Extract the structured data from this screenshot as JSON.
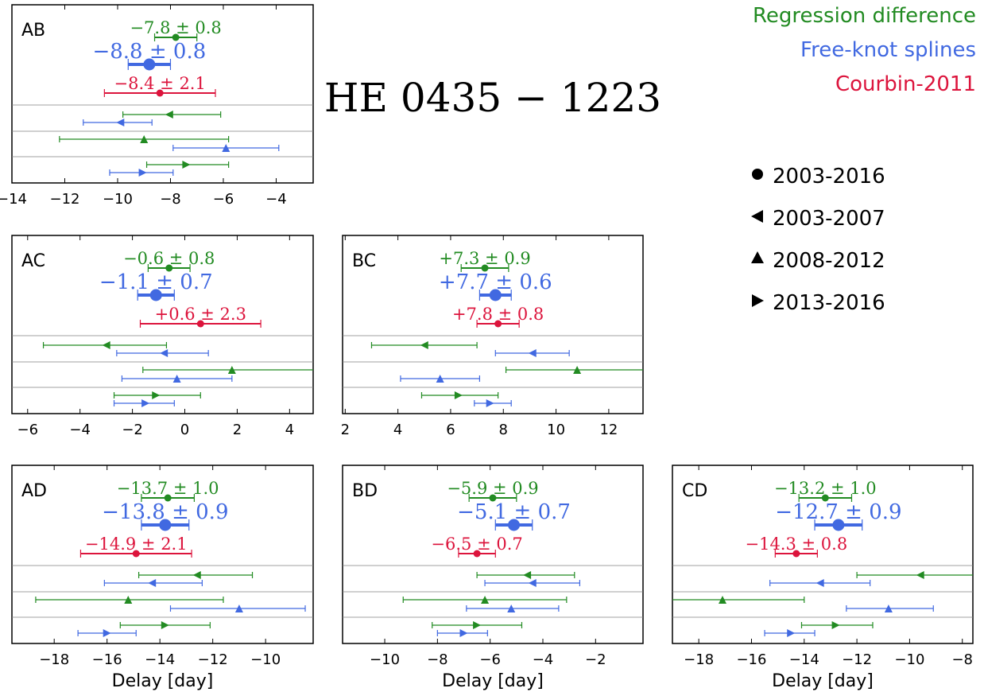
{
  "title": "HE 0435 − 1223",
  "legend_methods": [
    {
      "key": "rd",
      "label": "Regression difference",
      "color": "#228b22"
    },
    {
      "key": "fks",
      "label": "Free-knot splines",
      "color": "#4169e1"
    },
    {
      "key": "c11",
      "label": "Courbin-2011",
      "color": "#dc143c"
    }
  ],
  "legend_periods": [
    {
      "marker": "circle",
      "label": "2003-2016"
    },
    {
      "marker": "triangle-left",
      "label": "2003-2007"
    },
    {
      "marker": "triangle-up",
      "label": "2008-2012"
    },
    {
      "marker": "triangle-right",
      "label": "2013-2016"
    }
  ],
  "xlabel": "Delay [day]",
  "chart_data": [
    {
      "type": "errorbar",
      "panel": "AB",
      "xlim": [
        -14,
        -2.6
      ],
      "xticks": [
        -14,
        -12,
        -10,
        -8,
        -6,
        -4
      ],
      "xticklabels": [
        "−14",
        "−12",
        "−10",
        "−8",
        "−6",
        "−4"
      ],
      "xlabel": "",
      "summary": [
        {
          "method": "rd",
          "value": -7.8,
          "err": 0.8,
          "label": "−7.8 ± 0.8"
        },
        {
          "method": "fks",
          "value": -8.8,
          "err": 0.8,
          "label": "−8.8 ± 0.8"
        },
        {
          "method": "c11",
          "value": -8.4,
          "err": 2.1,
          "label": "−8.4 ± 2.1"
        }
      ],
      "seasons": [
        {
          "period": "2003-2007",
          "rd": [
            -8.05,
            -9.8,
            -6.1
          ],
          "fks": [
            -9.9,
            -11.3,
            -8.7
          ]
        },
        {
          "period": "2008-2012",
          "rd": [
            -9.0,
            -12.2,
            -5.8
          ],
          "fks": [
            -5.9,
            -7.9,
            -3.9
          ]
        },
        {
          "period": "2013-2016",
          "rd": [
            -7.4,
            -8.9,
            -5.8
          ],
          "fks": [
            -9.05,
            -10.3,
            -7.9
          ]
        }
      ]
    },
    {
      "type": "errorbar",
      "panel": "AC",
      "xlim": [
        -6.6,
        4.9
      ],
      "xticks": [
        -6,
        -4,
        -2,
        0,
        2,
        4
      ],
      "xticklabels": [
        "−6",
        "−4",
        "−2",
        "0",
        "2",
        "4"
      ],
      "xlabel": "",
      "summary": [
        {
          "method": "rd",
          "value": -0.6,
          "err": 0.8,
          "label": "−0.6 ± 0.8"
        },
        {
          "method": "fks",
          "value": -1.1,
          "err": 0.7,
          "label": "−1.1 ± 0.7"
        },
        {
          "method": "c11",
          "value": 0.6,
          "err": 2.3,
          "label": "+0.6 ± 2.3"
        }
      ],
      "seasons": [
        {
          "period": "2003-2007",
          "rd": [
            -3.0,
            -5.4,
            -0.7
          ],
          "fks": [
            -0.8,
            -2.6,
            0.9
          ]
        },
        {
          "period": "2008-2012",
          "rd": [
            1.8,
            -1.6,
            5.2
          ],
          "fks": [
            -0.3,
            -2.4,
            1.8
          ]
        },
        {
          "period": "2013-2016",
          "rd": [
            -1.1,
            -2.7,
            0.6
          ],
          "fks": [
            -1.5,
            -2.7,
            -0.4
          ]
        }
      ]
    },
    {
      "type": "errorbar",
      "panel": "BC",
      "xlim": [
        1.9,
        13.3
      ],
      "xticks": [
        2,
        4,
        6,
        8,
        10,
        12
      ],
      "xticklabels": [
        "2",
        "4",
        "6",
        "8",
        "10",
        "12"
      ],
      "xlabel": "",
      "summary": [
        {
          "method": "rd",
          "value": 7.3,
          "err": 0.9,
          "label": "+7.3 ± 0.9"
        },
        {
          "method": "fks",
          "value": 7.7,
          "err": 0.6,
          "label": "+7.7 ± 0.6"
        },
        {
          "method": "c11",
          "value": 7.8,
          "err": 0.8,
          "label": "+7.8 ± 0.8"
        }
      ],
      "seasons": [
        {
          "period": "2003-2007",
          "rd": [
            5.0,
            3.0,
            7.0
          ],
          "fks": [
            9.1,
            7.7,
            10.5
          ]
        },
        {
          "period": "2008-2012",
          "rd": [
            10.8,
            8.1,
            13.5
          ],
          "fks": [
            5.6,
            4.1,
            7.1
          ]
        },
        {
          "period": "2013-2016",
          "rd": [
            6.3,
            4.9,
            7.8
          ],
          "fks": [
            7.5,
            6.9,
            8.3
          ]
        }
      ]
    },
    {
      "type": "errorbar",
      "panel": "AD",
      "xlim": [
        -19.6,
        -8.2
      ],
      "xticks": [
        -18,
        -16,
        -14,
        -12,
        -10
      ],
      "xticklabels": [
        "−18",
        "−16",
        "−14",
        "−12",
        "−10"
      ],
      "xlabel": "Delay [day]",
      "summary": [
        {
          "method": "rd",
          "value": -13.7,
          "err": 1.0,
          "label": "−13.7 ± 1.0"
        },
        {
          "method": "fks",
          "value": -13.8,
          "err": 0.9,
          "label": "−13.8 ± 0.9"
        },
        {
          "method": "c11",
          "value": -14.9,
          "err": 2.1,
          "label": "−14.9 ± 2.1"
        }
      ],
      "seasons": [
        {
          "period": "2003-2007",
          "rd": [
            -12.6,
            -14.8,
            -10.5
          ],
          "fks": [
            -14.3,
            -16.1,
            -12.4
          ]
        },
        {
          "period": "2008-2012",
          "rd": [
            -15.2,
            -18.7,
            -11.6
          ],
          "fks": [
            -11.0,
            -13.6,
            -8.5
          ]
        },
        {
          "period": "2013-2016",
          "rd": [
            -13.8,
            -15.5,
            -12.1
          ],
          "fks": [
            -16.0,
            -17.1,
            -14.9
          ]
        }
      ]
    },
    {
      "type": "errorbar",
      "panel": "BD",
      "xlim": [
        -11.6,
        -0.2
      ],
      "xticks": [
        -10,
        -8,
        -6,
        -4,
        -2
      ],
      "xticklabels": [
        "−10",
        "−8",
        "−6",
        "−4",
        "−2"
      ],
      "xlabel": "Delay [day]",
      "summary": [
        {
          "method": "rd",
          "value": -5.9,
          "err": 0.9,
          "label": "−5.9 ± 0.9"
        },
        {
          "method": "fks",
          "value": -5.1,
          "err": 0.7,
          "label": "−5.1 ± 0.7"
        },
        {
          "method": "c11",
          "value": -6.5,
          "err": 0.7,
          "label": "−6.5 ± 0.7"
        }
      ],
      "seasons": [
        {
          "period": "2003-2007",
          "rd": [
            -4.6,
            -6.5,
            -2.8
          ],
          "fks": [
            -4.4,
            -6.2,
            -2.6
          ]
        },
        {
          "period": "2008-2012",
          "rd": [
            -6.2,
            -9.3,
            -3.1
          ],
          "fks": [
            -5.2,
            -6.9,
            -3.4
          ]
        },
        {
          "period": "2013-2016",
          "rd": [
            -6.5,
            -8.2,
            -4.8
          ],
          "fks": [
            -7.0,
            -8.0,
            -6.1
          ]
        }
      ]
    },
    {
      "type": "errorbar",
      "panel": "CD",
      "xlim": [
        -19.0,
        -7.6
      ],
      "xticks": [
        -18,
        -16,
        -14,
        -12,
        -10,
        -8
      ],
      "xticklabels": [
        "−18",
        "−16",
        "−14",
        "−12",
        "−10",
        "−8"
      ],
      "xlabel": "Delay [day]",
      "summary": [
        {
          "method": "rd",
          "value": -13.2,
          "err": 1.0,
          "label": "−13.2 ± 1.0"
        },
        {
          "method": "fks",
          "value": -12.7,
          "err": 0.9,
          "label": "−12.7 ± 0.9"
        },
        {
          "method": "c11",
          "value": -14.3,
          "err": 0.8,
          "label": "−14.3 ± 0.8"
        }
      ],
      "seasons": [
        {
          "period": "2003-2007",
          "rd": [
            -9.6,
            -12.0,
            -7.2
          ],
          "fks": [
            -13.4,
            -15.3,
            -11.5
          ]
        },
        {
          "period": "2008-2012",
          "rd": [
            -17.1,
            -20.0,
            -14.0
          ],
          "fks": [
            -10.8,
            -12.4,
            -9.1
          ]
        },
        {
          "period": "2013-2016",
          "rd": [
            -12.8,
            -14.1,
            -11.4
          ],
          "fks": [
            -14.5,
            -15.5,
            -13.6
          ]
        }
      ]
    }
  ]
}
